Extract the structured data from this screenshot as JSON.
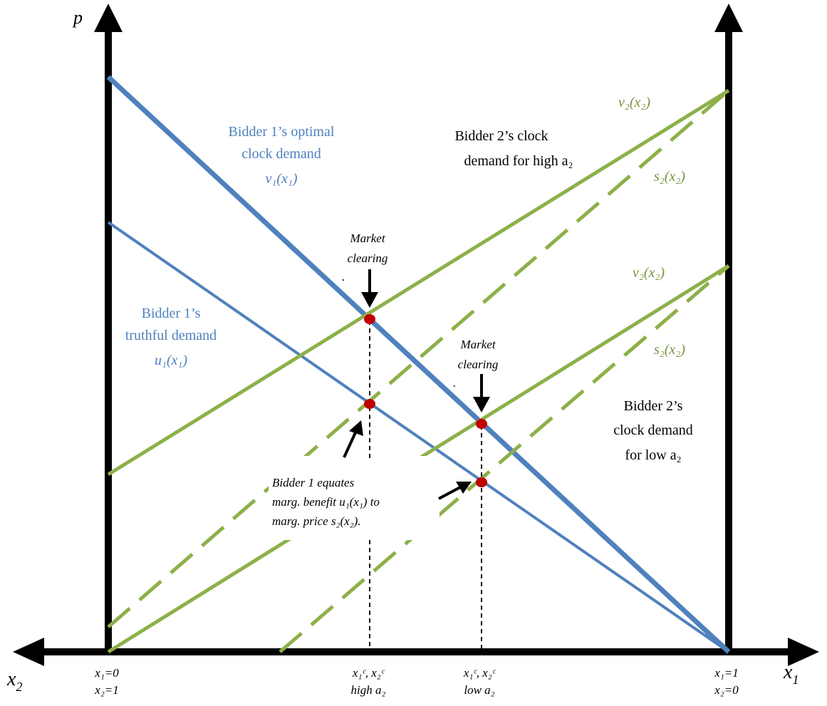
{
  "axes": {
    "p_label": "p",
    "x1_label": "x",
    "x1_sub": "1",
    "x2_label": "x",
    "x2_sub": "2",
    "left_tick": {
      "line1": "x₁=0",
      "line2": "x₂=1"
    },
    "right_tick": {
      "line1": "x₁=1",
      "line2": "x₂=0"
    },
    "high_tick": {
      "line1": "x₁ᶜ, x₂ᶜ",
      "line2": "high a₂"
    },
    "low_tick": {
      "line1": "x₁ᶜ, x₂ᶜ",
      "line2": "low a₂"
    }
  },
  "labels": {
    "optimal": [
      "Bidder 1’s optimal",
      "clock demand",
      "v₁(x₁)"
    ],
    "truthful": [
      "Bidder 1’s",
      "truthful demand",
      "u₁(x₁)"
    ],
    "b2_high": [
      "Bidder 2’s clock",
      "demand for high a₂"
    ],
    "b2_low": [
      "Bidder 2’s",
      "clock demand",
      "for low a₂"
    ],
    "v2_high": "v₂(x₂)",
    "s2_high": "s₂(x₂)",
    "v2_low": "v₂(x₂)",
    "s2_low": "s₂(x₂)",
    "mc1": [
      "Market",
      "clearing",
      "."
    ],
    "mc2": [
      "Market",
      "clearing",
      "."
    ],
    "equates": [
      "Bidder 1 equates",
      "marg. benefit u₁(x₁) to",
      "marg. price s₂(x₂)."
    ]
  },
  "colors": {
    "blue": "#4f81bd",
    "green": "#8db049",
    "red": "#c00000",
    "black": "#000000"
  }
}
